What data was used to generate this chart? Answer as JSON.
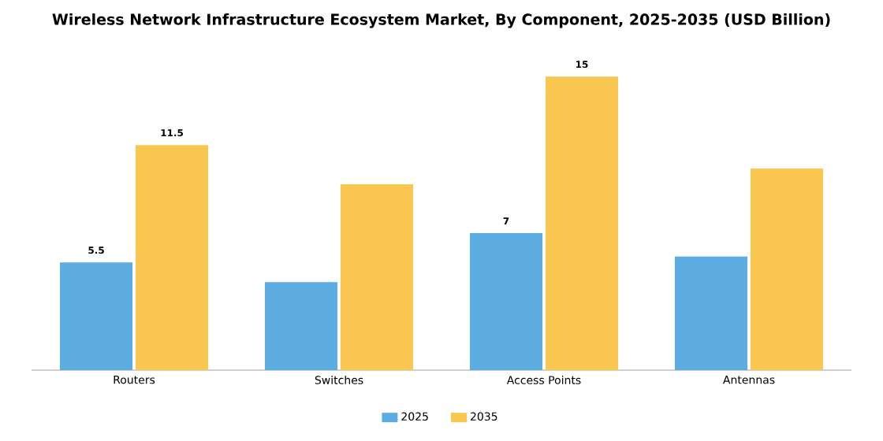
{
  "chart_data": {
    "type": "bar",
    "title": "Wireless Network Infrastructure Ecosystem Market, By Component, 2025-2035 (USD Billion)",
    "categories": [
      "Routers",
      "Switches",
      "Access Points",
      "Antennas"
    ],
    "series": [
      {
        "name": "2025",
        "color": "#5dade2",
        "values": [
          5.5,
          4.5,
          7,
          5.8
        ],
        "value_labels": [
          "5.5",
          null,
          "7",
          null
        ]
      },
      {
        "name": "2035",
        "color": "#f9c74f",
        "values": [
          11.5,
          9.5,
          15,
          10.3
        ],
        "value_labels": [
          "11.5",
          null,
          "15",
          null
        ]
      }
    ],
    "tick_labels": "x",
    "grid": false,
    "legend": "bottom"
  }
}
